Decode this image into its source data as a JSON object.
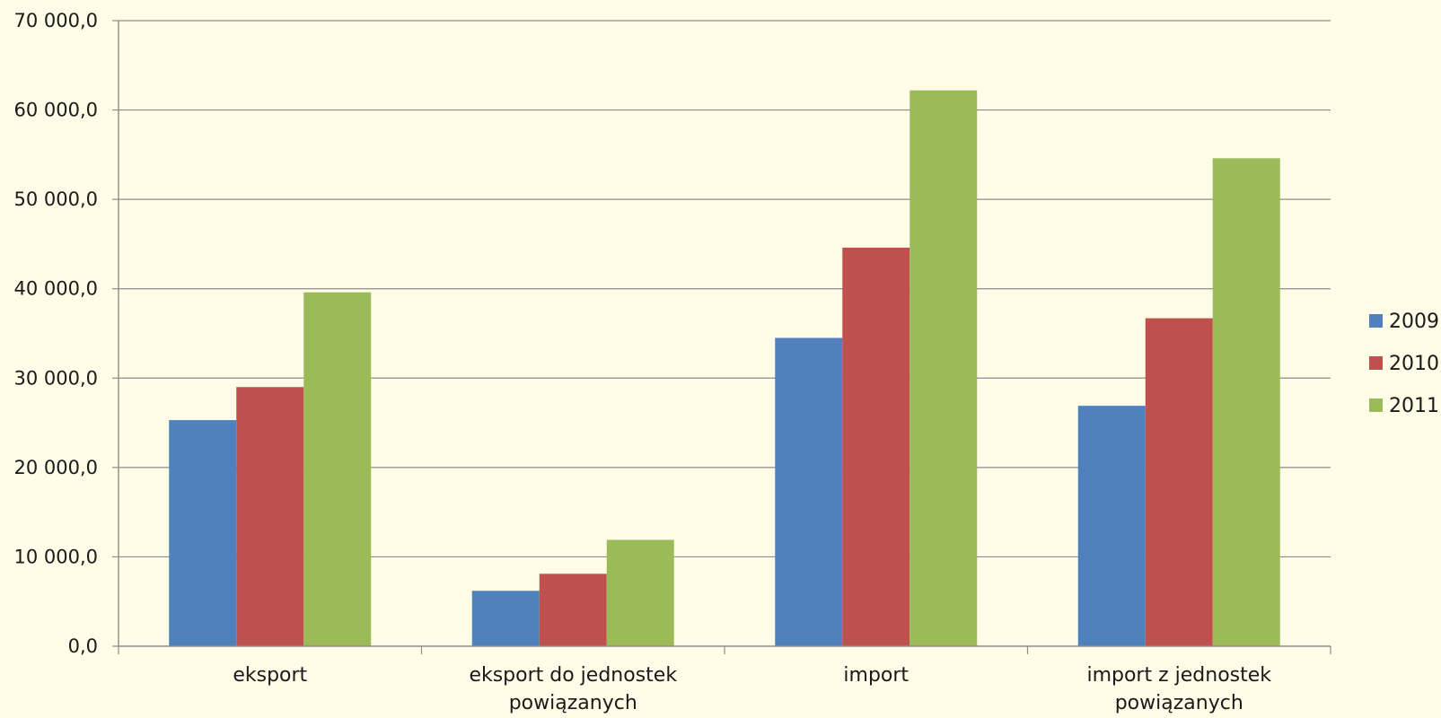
{
  "chart_data": {
    "type": "bar",
    "title": "",
    "xlabel": "",
    "ylabel": "",
    "categories": [
      [
        "eksport"
      ],
      [
        "eksport do jednostek",
        "powiązanych"
      ],
      [
        "import"
      ],
      [
        "import z jednostek",
        "powiązanych"
      ]
    ],
    "series": [
      {
        "name": "2009",
        "color": "#4f81bd",
        "values": [
          25300,
          6200,
          34500,
          26900
        ]
      },
      {
        "name": "2010",
        "color": "#c0504d",
        "values": [
          29000,
          8100,
          44600,
          36700
        ]
      },
      {
        "name": "2011",
        "color": "#9bbb59",
        "values": [
          39600,
          11900,
          62200,
          54600
        ]
      }
    ],
    "ylim": [
      0,
      70000
    ],
    "yticks": [
      0,
      10000,
      20000,
      30000,
      40000,
      50000,
      60000,
      70000
    ],
    "ytick_labels": [
      "0,0",
      "10 000,0",
      "20 000,0",
      "30 000,0",
      "40 000,0",
      "50 000,0",
      "60 000,0",
      "70 000,0"
    ],
    "grid": true,
    "legend_position": "right"
  }
}
